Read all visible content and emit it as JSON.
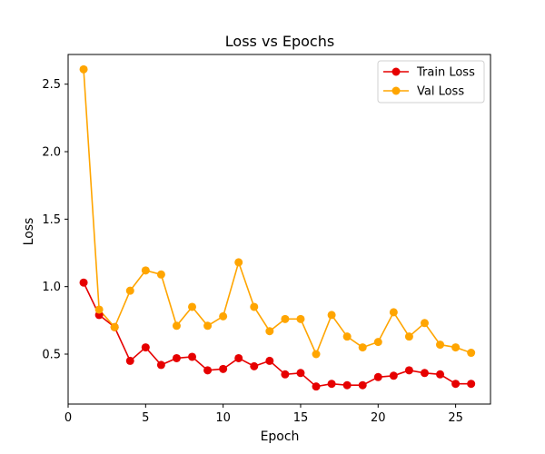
{
  "chart_data": {
    "type": "line",
    "title": "Loss vs Epochs",
    "xlabel": "Epoch",
    "ylabel": "Loss",
    "xlim": [
      0,
      27.25
    ],
    "ylim": [
      0.13,
      2.72
    ],
    "xticks": [
      0,
      5,
      10,
      15,
      20,
      25
    ],
    "yticks": [
      0.5,
      1.0,
      1.5,
      2.0,
      2.5
    ],
    "ytick_labels": [
      "0.5",
      "1.0",
      "1.5",
      "2.0",
      "2.5"
    ],
    "grid": false,
    "legend_position": "top-right",
    "x": [
      1,
      2,
      3,
      4,
      5,
      6,
      7,
      8,
      9,
      10,
      11,
      12,
      13,
      14,
      15,
      16,
      17,
      18,
      19,
      20,
      21,
      22,
      23,
      24,
      25,
      26
    ],
    "series": [
      {
        "name": "Train Loss",
        "color": "#e60000",
        "values": [
          1.03,
          0.79,
          0.7,
          0.45,
          0.55,
          0.42,
          0.47,
          0.48,
          0.38,
          0.39,
          0.47,
          0.41,
          0.45,
          0.35,
          0.36,
          0.26,
          0.28,
          0.27,
          0.27,
          0.33,
          0.34,
          0.38,
          0.36,
          0.35,
          0.28,
          0.28
        ]
      },
      {
        "name": "Val Loss",
        "color": "#ffa500",
        "values": [
          2.61,
          0.83,
          0.7,
          0.97,
          1.12,
          1.09,
          0.71,
          0.85,
          0.71,
          0.78,
          1.18,
          0.85,
          0.67,
          0.76,
          0.76,
          0.5,
          0.79,
          0.63,
          0.55,
          0.59,
          0.81,
          0.63,
          0.73,
          0.57,
          0.55,
          0.51
        ]
      }
    ]
  }
}
